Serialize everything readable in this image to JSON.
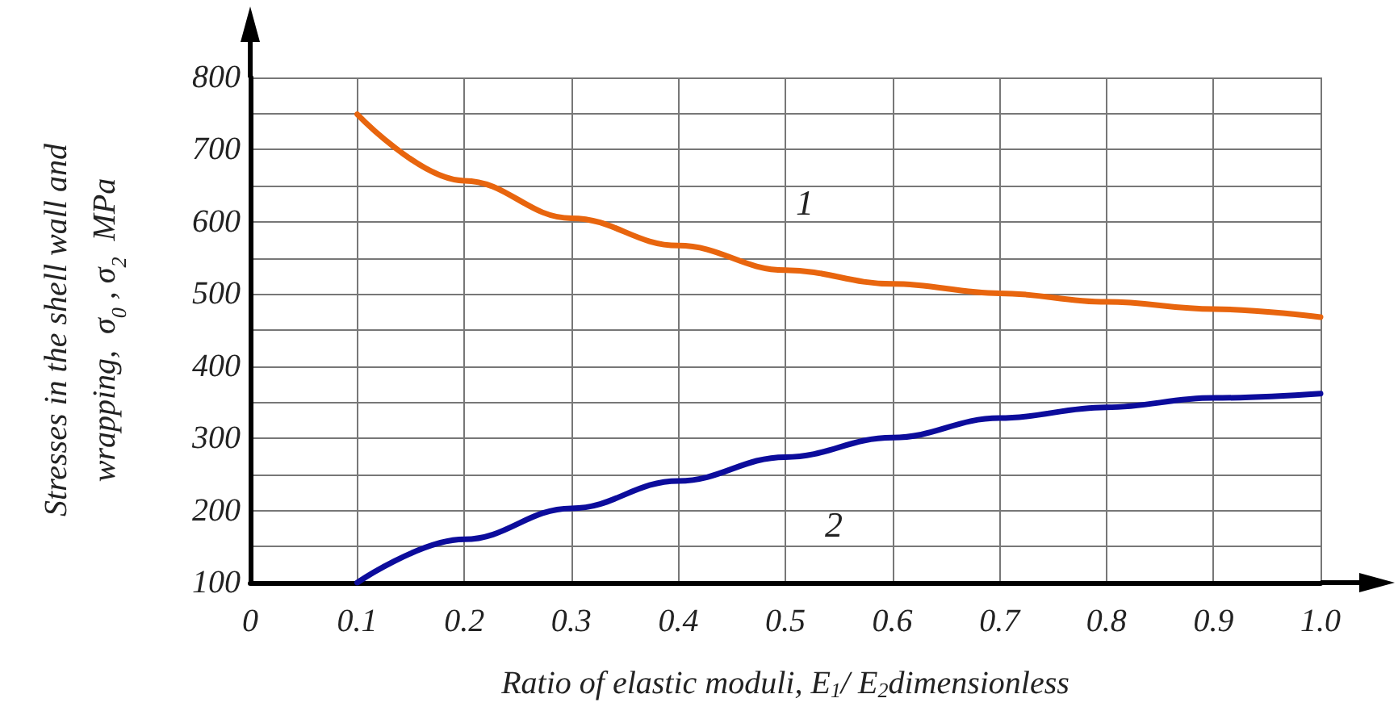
{
  "chart_data": {
    "type": "line",
    "xlabel": "Ratio of elastic moduli, E$_{1}$/ E$_{2}$dimensionless",
    "ylabel": "Stresses in the shell wall and wrapping,  σ$_{0}$ , σ$_{2}$  MPa",
    "x": [
      0.1,
      0.2,
      0.3,
      0.4,
      0.5,
      0.6,
      0.7,
      0.8,
      0.9,
      1.0
    ],
    "series": [
      {
        "color": "#e8650e",
        "values": [
          749,
          657,
          605,
          567,
          533,
          514,
          501,
          489,
          479,
          468
        ]
      },
      {
        "color": "#0c0c9c",
        "values": [
          100,
          160,
          203,
          241,
          274,
          301,
          328,
          343,
          356,
          362
        ]
      }
    ],
    "xlim": [
      0,
      1.0
    ],
    "xticks": [
      {
        "value": 0,
        "label": "0"
      },
      0.1,
      0.2,
      0.3,
      0.4,
      0.5,
      0.6,
      0.7,
      0.8,
      0.9,
      {
        "value": 1.0,
        "label": "1.0"
      }
    ],
    "ylim": [
      100,
      800
    ],
    "yticks": [
      100,
      {
        "value": 150,
        "label": null
      },
      200,
      {
        "value": 250,
        "label": null
      },
      300,
      {
        "value": 350,
        "label": null
      },
      400,
      {
        "value": 450,
        "label": null
      },
      500,
      {
        "value": 550,
        "label": null
      },
      600,
      {
        "value": 650,
        "label": null
      },
      700,
      {
        "value": 750,
        "label": null
      },
      800
    ],
    "grid": true,
    "marker": "none",
    "line_style": "solid",
    "annotations": [
      {
        "text": "1",
        "x": 0.5,
        "y": 533
      },
      {
        "text": "2",
        "x": 0.5,
        "y": 274
      }
    ]
  }
}
